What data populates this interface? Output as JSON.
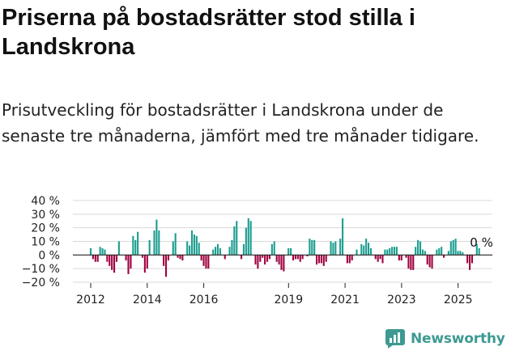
{
  "title": "Priserna på bostadsrätter stod stilla i Landskrona",
  "subtitle": "Prisutveckling för bostadsrätter i Landskrona under de senaste tre månaderna, jämfört med tre månader tidigare.",
  "brand": {
    "name": "Newsworthy",
    "color": "#3d9a92"
  },
  "colors": {
    "positive": "#1b9e90",
    "negative": "#a0003f",
    "axis": "#222222",
    "grid": "#d9d9d9"
  },
  "chart_data": {
    "type": "bar",
    "ylim": [
      -20,
      40
    ],
    "yticks": [
      "40 %",
      "30 %",
      "20 %",
      "10 %",
      "0 %",
      "−10 %",
      "−20 %"
    ],
    "ytick_values": [
      40,
      30,
      20,
      10,
      0,
      -10,
      -20
    ],
    "xticks": [
      "2012",
      "2014",
      "2016",
      "2019",
      "2021",
      "2023",
      "2025"
    ],
    "xtick_values": [
      2012.0,
      2014.0,
      2016.0,
      2019.0,
      2021.0,
      2023.0,
      2025.0
    ],
    "x_start": 2012.0,
    "x_step_years": 0.0833,
    "last_label": "0 %",
    "values": [
      5,
      -3,
      -5,
      -5,
      6,
      5,
      4,
      -5,
      -8,
      -11,
      -13,
      -5,
      10,
      0,
      0,
      -4,
      -14,
      -10,
      14,
      11,
      17,
      0,
      -2,
      -13,
      -10,
      11,
      0,
      18,
      26,
      18,
      0,
      -8,
      -16,
      -4,
      0,
      10,
      16,
      -2,
      -3,
      -4,
      0,
      10,
      7,
      18,
      15,
      14,
      9,
      -4,
      -8,
      -10,
      -10,
      0,
      4,
      6,
      8,
      5,
      0,
      -3,
      0,
      6,
      11,
      21,
      25,
      0,
      -3,
      8,
      20,
      27,
      25,
      0,
      -7,
      -10,
      -5,
      -2,
      -7,
      -5,
      -3,
      8,
      10,
      -5,
      -7,
      -11,
      -12,
      0,
      5,
      5,
      -4,
      -3,
      -3,
      -5,
      -3,
      0,
      -1,
      12,
      11,
      11,
      -7,
      -6,
      -6,
      -8,
      -5,
      0,
      10,
      9,
      10,
      0,
      12,
      27,
      0,
      -6,
      -6,
      -4,
      0,
      4,
      0,
      8,
      7,
      12,
      9,
      5,
      0,
      -3,
      -5,
      -3,
      -6,
      4,
      4,
      5,
      6,
      6,
      6,
      -4,
      -4,
      0,
      -2,
      -10,
      -11,
      -11,
      6,
      11,
      10,
      4,
      3,
      -7,
      -9,
      -10,
      0,
      4,
      5,
      6,
      -2,
      0,
      3,
      10,
      11,
      12,
      3,
      3,
      2,
      0,
      -6,
      -11,
      -6,
      0,
      8,
      5,
      0
    ]
  }
}
